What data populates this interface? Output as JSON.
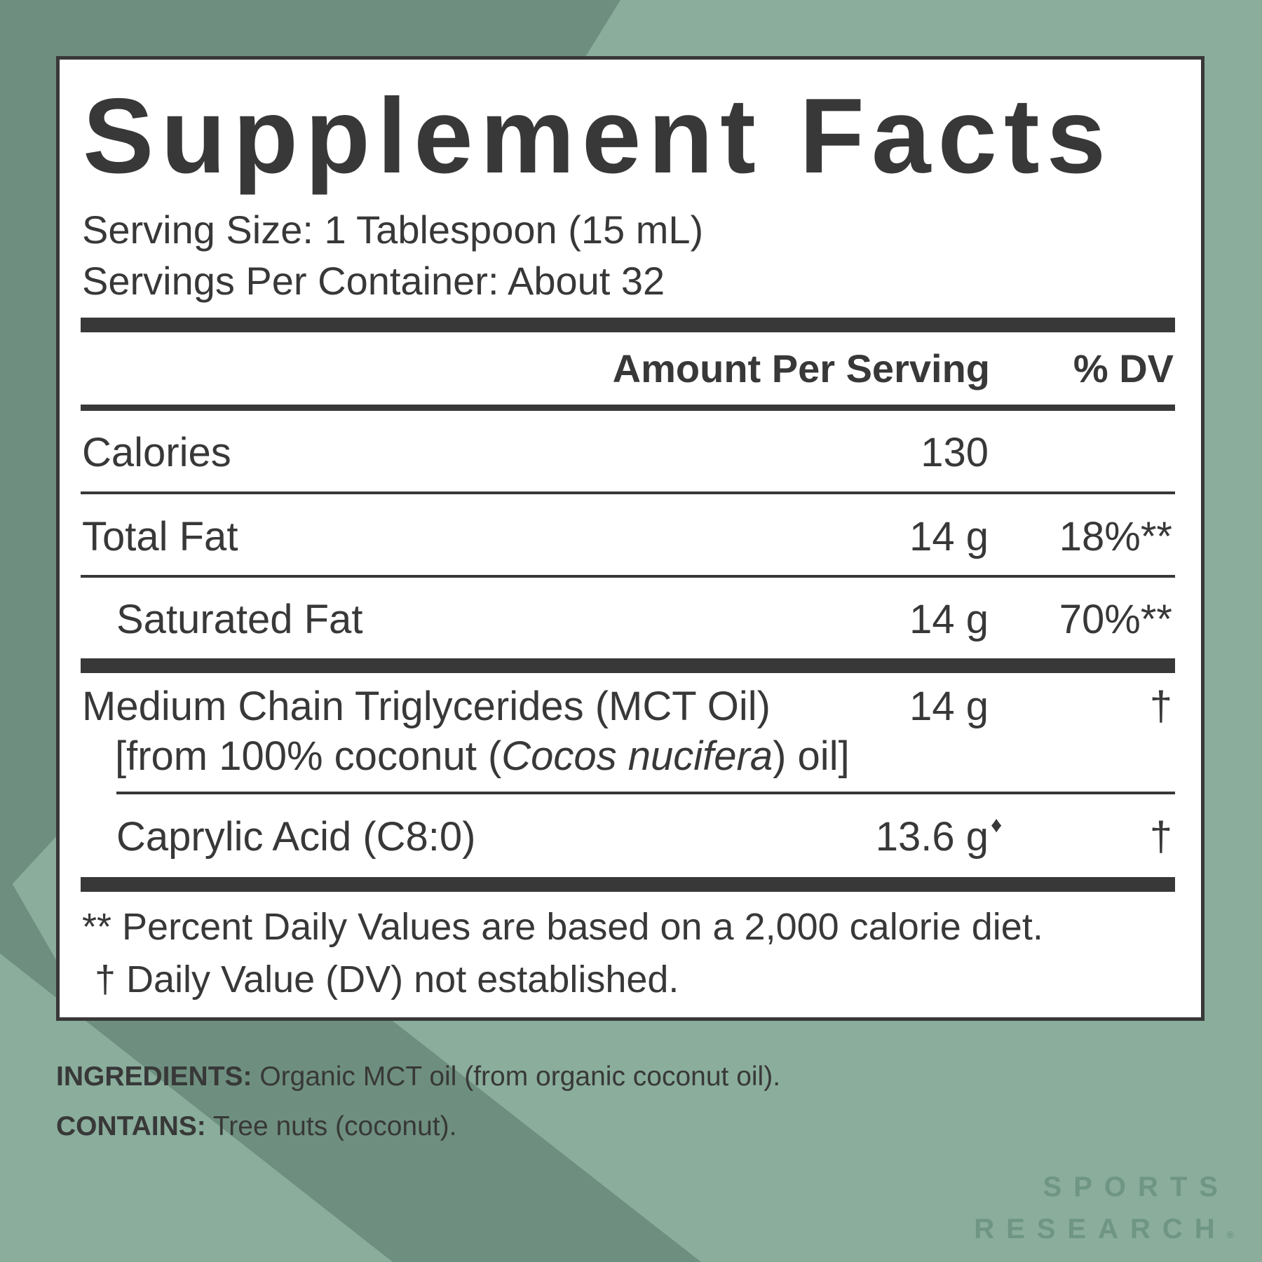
{
  "title": "Supplement Facts",
  "serving_size": "Serving Size: 1 Tablespoon (15 mL)",
  "servings_per_container": "Servings Per Container: About 32",
  "header": {
    "amount": "Amount Per Serving",
    "dv": "% DV"
  },
  "rows": [
    {
      "name": "Calories",
      "amount": "130",
      "dv": ""
    },
    {
      "name": "Total Fat",
      "amount": "14 g",
      "dv": "18%**"
    },
    {
      "name": "Saturated Fat",
      "amount": "14 g",
      "dv": "70%**"
    },
    {
      "name": "Medium Chain Triglycerides (MCT Oil)",
      "name_line2_pre": "[from 100% coconut (",
      "name_line2_italic": "Cocos nucifera",
      "name_line2_post": ") oil]",
      "amount": "14 g",
      "dv": "†"
    },
    {
      "name": "Caprylic Acid (C8:0)",
      "amount": "13.6 g",
      "amount_mark": "♦",
      "dv": "†"
    }
  ],
  "footnotes": [
    "** Percent Daily Values are based on a 2,000 calorie diet.",
    "† Daily Value (DV) not established."
  ],
  "ingredients": {
    "label": "INGREDIENTS:",
    "text": " Organic MCT oil (from organic coconut oil)."
  },
  "contains": {
    "label": "CONTAINS:",
    "text": " Tree nuts (coconut)."
  },
  "brand": {
    "line1": "SPORTS",
    "line2": "RESEARCH",
    "mark": "®"
  },
  "colors": {
    "background": "#8aad9c",
    "background_dark": "#6e8f7f",
    "ink": "#383838",
    "brand": "#6f9584"
  }
}
